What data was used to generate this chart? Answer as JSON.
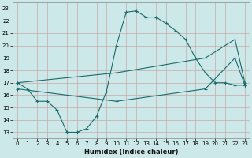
{
  "xlabel": "Humidex (Indice chaleur)",
  "bg_color": "#cce8e8",
  "grid_color": "#aacccc",
  "line_color": "#1a6b6b",
  "xlim": [
    -0.5,
    23.5
  ],
  "ylim": [
    12.5,
    23.5
  ],
  "xticks": [
    0,
    1,
    2,
    3,
    4,
    5,
    6,
    7,
    8,
    9,
    10,
    11,
    12,
    13,
    14,
    15,
    16,
    17,
    18,
    19,
    20,
    21,
    22,
    23
  ],
  "yticks": [
    13,
    14,
    15,
    16,
    17,
    18,
    19,
    20,
    21,
    22,
    23
  ],
  "line1_x": [
    0,
    1,
    2,
    3,
    4,
    5,
    6,
    7,
    8,
    9,
    10,
    11,
    12,
    13,
    14,
    15,
    16,
    17,
    18,
    19,
    20,
    21,
    22,
    23
  ],
  "line1_y": [
    17.0,
    16.5,
    15.5,
    15.5,
    14.8,
    13.0,
    13.0,
    13.3,
    14.3,
    16.3,
    20.0,
    22.7,
    22.8,
    22.3,
    22.3,
    21.8,
    21.2,
    20.5,
    19.0,
    17.8,
    17.0,
    17.0,
    16.8,
    16.8
  ],
  "line2_x": [
    0,
    10,
    19,
    22,
    23
  ],
  "line2_y": [
    17.0,
    17.8,
    19.0,
    20.5,
    17.0
  ],
  "line3_x": [
    0,
    10,
    19,
    22,
    23
  ],
  "line3_y": [
    16.5,
    15.5,
    16.5,
    19.0,
    16.8
  ]
}
